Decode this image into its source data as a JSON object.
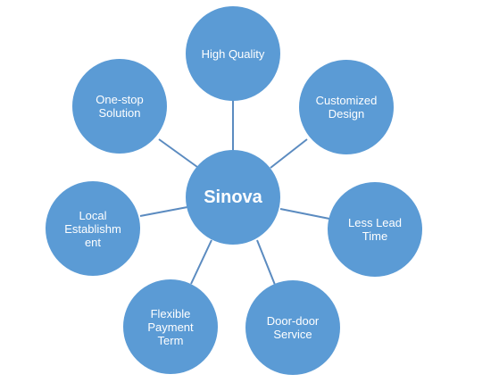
{
  "diagram": {
    "center": {
      "label": "Sinova"
    },
    "nodes": [
      {
        "id": "high-quality",
        "label": "High Quality"
      },
      {
        "id": "customized-design",
        "label": "Customized Design"
      },
      {
        "id": "less-lead-time",
        "label": "Less Lead Time"
      },
      {
        "id": "door-door-service",
        "label": "Door-door Service"
      },
      {
        "id": "flexible-payment-term",
        "label": "Flexible Payment Term"
      },
      {
        "id": "local-establishment",
        "label": "Local Establishm ent"
      },
      {
        "id": "one-stop-solution",
        "label": "One-stop Solution"
      }
    ],
    "colors": {
      "node_fill": "#5b9bd5",
      "connector": "#5b8bc0",
      "text": "#ffffff"
    }
  }
}
